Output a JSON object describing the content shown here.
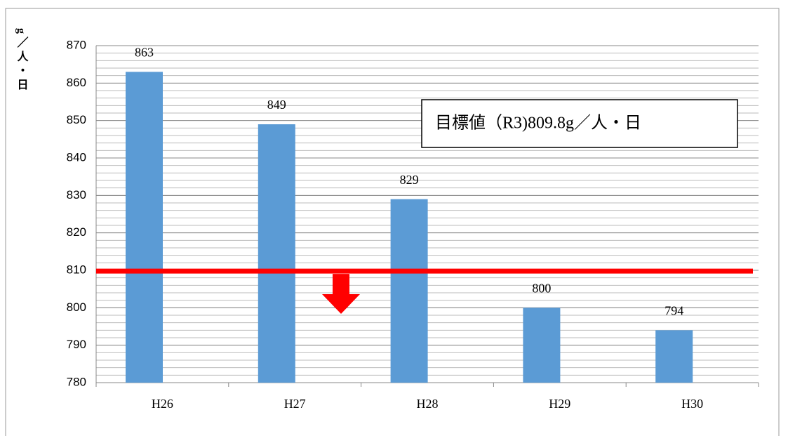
{
  "chart_data": {
    "type": "bar",
    "y_label": "g／人・日",
    "categories": [
      "H26",
      "H27",
      "H28",
      "H29",
      "H30"
    ],
    "values": [
      863,
      849,
      829,
      800,
      794
    ],
    "color": "#5b9bd5",
    "ylim": [
      780,
      870
    ],
    "yticks": [
      780,
      790,
      800,
      810,
      820,
      830,
      840,
      850,
      860,
      870
    ],
    "grid": true,
    "minor_grid_step": 2,
    "target": {
      "value": 809.8,
      "color": "#ff0000",
      "label": "目標値（R3)809.8g／人・日"
    }
  }
}
